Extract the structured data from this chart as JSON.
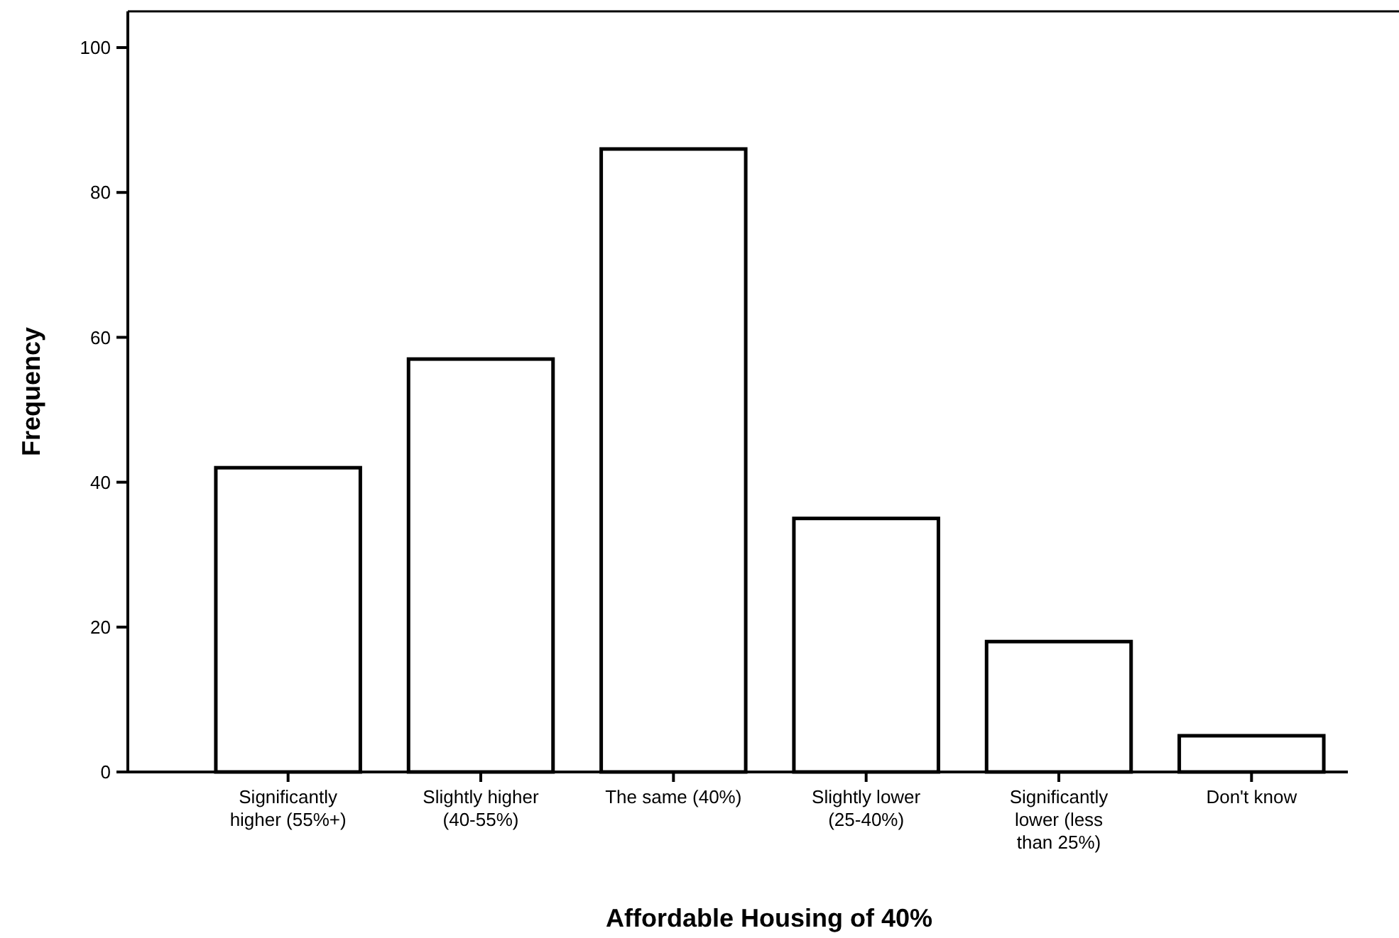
{
  "chart_data": {
    "type": "bar",
    "xlabel": "Affordable Housing of 40%",
    "ylabel": "Frequency",
    "categories": [
      "Significantly higher (55%+)",
      "Slightly higher (40-55%)",
      "The same (40%)",
      "Slightly lower (25-40%)",
      "Significantly lower (less than 25%)",
      "Don't know"
    ],
    "values": [
      42,
      57,
      86,
      35,
      18,
      5
    ],
    "color": "#ffffff",
    "ylim": [
      0,
      105
    ],
    "yticks": [
      0,
      20,
      40,
      60,
      80,
      100
    ],
    "grid": false
  }
}
